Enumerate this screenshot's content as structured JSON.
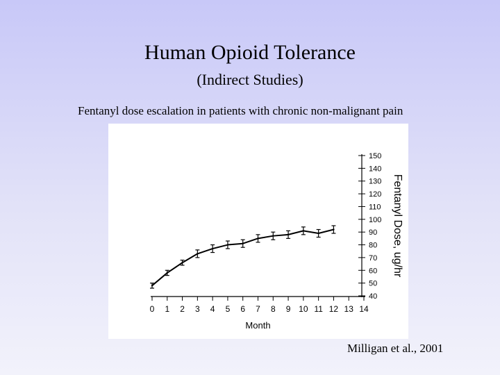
{
  "slide": {
    "title": "Human Opioid Tolerance",
    "subtitle": "(Indirect Studies)",
    "caption": "Fentanyl dose escalation in patients with chronic non-malignant pain",
    "citation": "Milligan et al., 2001"
  },
  "chart_data": {
    "type": "line",
    "xlabel": "Month",
    "ylabel": "Fentanyl Dose, ug/hr",
    "xlim": [
      0,
      14
    ],
    "ylim": [
      40,
      150
    ],
    "x_ticks": [
      0,
      1,
      2,
      3,
      4,
      5,
      6,
      7,
      8,
      9,
      10,
      11,
      12,
      13,
      14
    ],
    "y_ticks": [
      40,
      50,
      60,
      70,
      80,
      90,
      100,
      110,
      120,
      130,
      140,
      150
    ],
    "y_axis_side": "right",
    "grid": false,
    "series": [
      {
        "x": [
          0,
          1,
          2,
          3,
          4,
          5,
          6,
          7,
          8,
          9,
          10,
          11,
          12
        ],
        "y": [
          48,
          58,
          66,
          73,
          77,
          80,
          81,
          85,
          87,
          88,
          91,
          89,
          92
        ],
        "error": [
          2,
          2,
          2,
          3,
          3,
          3,
          3,
          3,
          3,
          3,
          3,
          3,
          3
        ]
      }
    ],
    "colors": {
      "line": "#000000",
      "background": "#ffffff"
    }
  }
}
